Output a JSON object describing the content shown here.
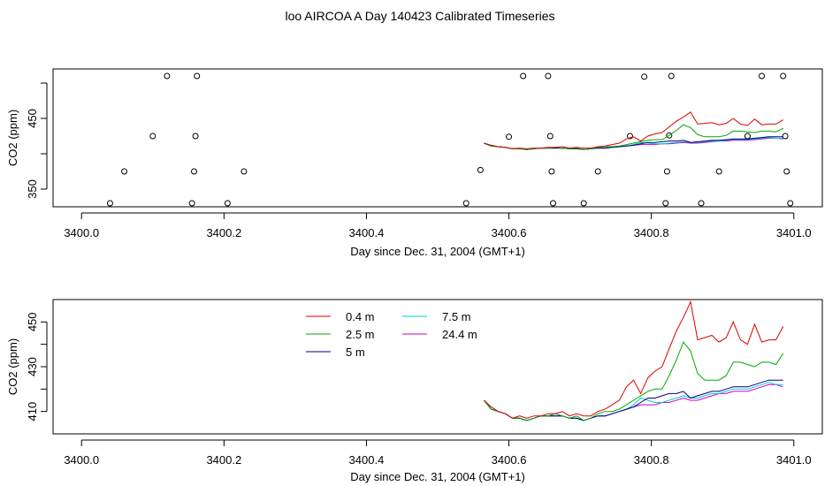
{
  "page": {
    "title": "loo AIRCOA A  Day 140423  Calibrated Timeseries"
  },
  "chart_data": [
    {
      "type": "scatter",
      "xlabel": "Day since Dec. 31, 2004 (GMT+1)",
      "ylabel": "CO2 (ppm)",
      "xlim": [
        3399.96,
        3401.04
      ],
      "ylim": [
        325,
        520
      ],
      "xticks": [
        "3400.0",
        "3400.2",
        "3400.4",
        "3400.6",
        "3400.8",
        "3401.0"
      ],
      "yticks": [
        "350",
        "450"
      ],
      "ytick_values": [
        350,
        400,
        450,
        500
      ],
      "ytick_labeled": [
        350,
        450
      ],
      "points": [
        {
          "x": 3400.04,
          "y": 330
        },
        {
          "x": 3400.06,
          "y": 375
        },
        {
          "x": 3400.1,
          "y": 425
        },
        {
          "x": 3400.12,
          "y": 510
        },
        {
          "x": 3400.155,
          "y": 330
        },
        {
          "x": 3400.158,
          "y": 375
        },
        {
          "x": 3400.16,
          "y": 425
        },
        {
          "x": 3400.162,
          "y": 510
        },
        {
          "x": 3400.205,
          "y": 330
        },
        {
          "x": 3400.228,
          "y": 375
        },
        {
          "x": 3400.54,
          "y": 330
        },
        {
          "x": 3400.56,
          "y": 377
        },
        {
          "x": 3400.6,
          "y": 424
        },
        {
          "x": 3400.62,
          "y": 510
        },
        {
          "x": 3400.655,
          "y": 510
        },
        {
          "x": 3400.658,
          "y": 425
        },
        {
          "x": 3400.66,
          "y": 375
        },
        {
          "x": 3400.662,
          "y": 330
        },
        {
          "x": 3400.705,
          "y": 330
        },
        {
          "x": 3400.725,
          "y": 375
        },
        {
          "x": 3400.77,
          "y": 425
        },
        {
          "x": 3400.79,
          "y": 509
        },
        {
          "x": 3400.82,
          "y": 330
        },
        {
          "x": 3400.822,
          "y": 375
        },
        {
          "x": 3400.825,
          "y": 426
        },
        {
          "x": 3400.828,
          "y": 510
        },
        {
          "x": 3400.87,
          "y": 330
        },
        {
          "x": 3400.895,
          "y": 375
        },
        {
          "x": 3400.935,
          "y": 425
        },
        {
          "x": 3400.955,
          "y": 510
        },
        {
          "x": 3400.985,
          "y": 510
        },
        {
          "x": 3400.988,
          "y": 425
        },
        {
          "x": 3400.99,
          "y": 375
        },
        {
          "x": 3400.995,
          "y": 330
        }
      ]
    },
    {
      "type": "line",
      "xlabel": "Day since Dec. 31, 2004 (GMT+1)",
      "ylabel": "CO2 (ppm)",
      "xlim": [
        3399.96,
        3401.04
      ],
      "ylim": [
        400,
        460
      ],
      "xticks": [
        "3400.0",
        "3400.2",
        "3400.4",
        "3400.6",
        "3400.8",
        "3401.0"
      ],
      "yticks": [
        "410",
        "430",
        "450"
      ],
      "ytick_values": [
        410,
        420,
        430,
        440,
        450
      ],
      "ytick_labeled": [
        410,
        430,
        450
      ],
      "legend": {
        "placement": "top-center",
        "entries": [
          {
            "name": "0.4 m",
            "color": "#dd0000"
          },
          {
            "name": "2.5 m",
            "color": "#00aa00"
          },
          {
            "name": "5 m",
            "color": "#000080"
          },
          {
            "name": "7.5 m",
            "color": "#00cccc"
          },
          {
            "name": "24.4 m",
            "color": "#cc00cc"
          }
        ]
      },
      "x": [
        3400.565,
        3400.575,
        3400.585,
        3400.595,
        3400.605,
        3400.615,
        3400.625,
        3400.635,
        3400.645,
        3400.655,
        3400.665,
        3400.675,
        3400.685,
        3400.695,
        3400.705,
        3400.715,
        3400.725,
        3400.735,
        3400.745,
        3400.755,
        3400.765,
        3400.775,
        3400.785,
        3400.795,
        3400.805,
        3400.815,
        3400.825,
        3400.835,
        3400.845,
        3400.855,
        3400.865,
        3400.875,
        3400.885,
        3400.895,
        3400.905,
        3400.915,
        3400.925,
        3400.935,
        3400.945,
        3400.955,
        3400.965,
        3400.975,
        3400.985
      ],
      "series": [
        {
          "name": "0.4 m",
          "color": "#dd0000",
          "values": [
            415,
            412,
            410,
            409,
            407,
            408,
            407,
            408,
            408,
            409,
            409,
            410,
            408,
            409,
            408,
            408,
            410,
            411,
            413,
            415,
            421,
            424,
            418,
            425,
            428,
            430,
            438,
            446,
            452,
            459,
            442,
            443,
            444,
            441,
            443,
            450,
            442,
            440,
            449,
            441,
            442,
            442,
            448
          ]
        },
        {
          "name": "2.5 m",
          "color": "#00aa00",
          "values": [
            415,
            411,
            410,
            409,
            407,
            407,
            406,
            407,
            408,
            408,
            409,
            408,
            407,
            408,
            406,
            407,
            409,
            410,
            410,
            411,
            413,
            415,
            417,
            419,
            420,
            420,
            426,
            433,
            441,
            437,
            427,
            424,
            424,
            424,
            426,
            432,
            432,
            431,
            430,
            432,
            432,
            431,
            436
          ]
        },
        {
          "name": "5 m",
          "color": "#000080",
          "values": [
            415,
            411,
            410,
            409,
            407,
            407,
            406,
            407,
            408,
            408,
            408,
            408,
            407,
            407,
            406,
            407,
            408,
            408,
            409,
            410,
            411,
            412,
            414,
            416,
            416,
            417,
            418,
            418,
            419,
            416,
            417,
            418,
            419,
            419,
            420,
            421,
            421,
            421,
            422,
            423,
            424,
            424,
            424
          ]
        },
        {
          "name": "7.5 m",
          "color": "#00cccc",
          "values": [
            415,
            412,
            410,
            409,
            407,
            407,
            406,
            407,
            408,
            408,
            408,
            408,
            407,
            407,
            406,
            407,
            408,
            408,
            409,
            410,
            411,
            413,
            416,
            415,
            414,
            414,
            415,
            416,
            417,
            416,
            416,
            417,
            418,
            418,
            419,
            420,
            420,
            420,
            421,
            422,
            423,
            422,
            422
          ]
        },
        {
          "name": "24.4 m",
          "color": "#cc00cc",
          "values": [
            415,
            411,
            410,
            409,
            407,
            407,
            406,
            407,
            408,
            408,
            408,
            408,
            407,
            407,
            406,
            407,
            408,
            408,
            409,
            410,
            411,
            412,
            413,
            413,
            413,
            414,
            414,
            415,
            416,
            415,
            415,
            416,
            417,
            418,
            418,
            419,
            419,
            419,
            420,
            421,
            422,
            422,
            421
          ]
        }
      ]
    }
  ]
}
